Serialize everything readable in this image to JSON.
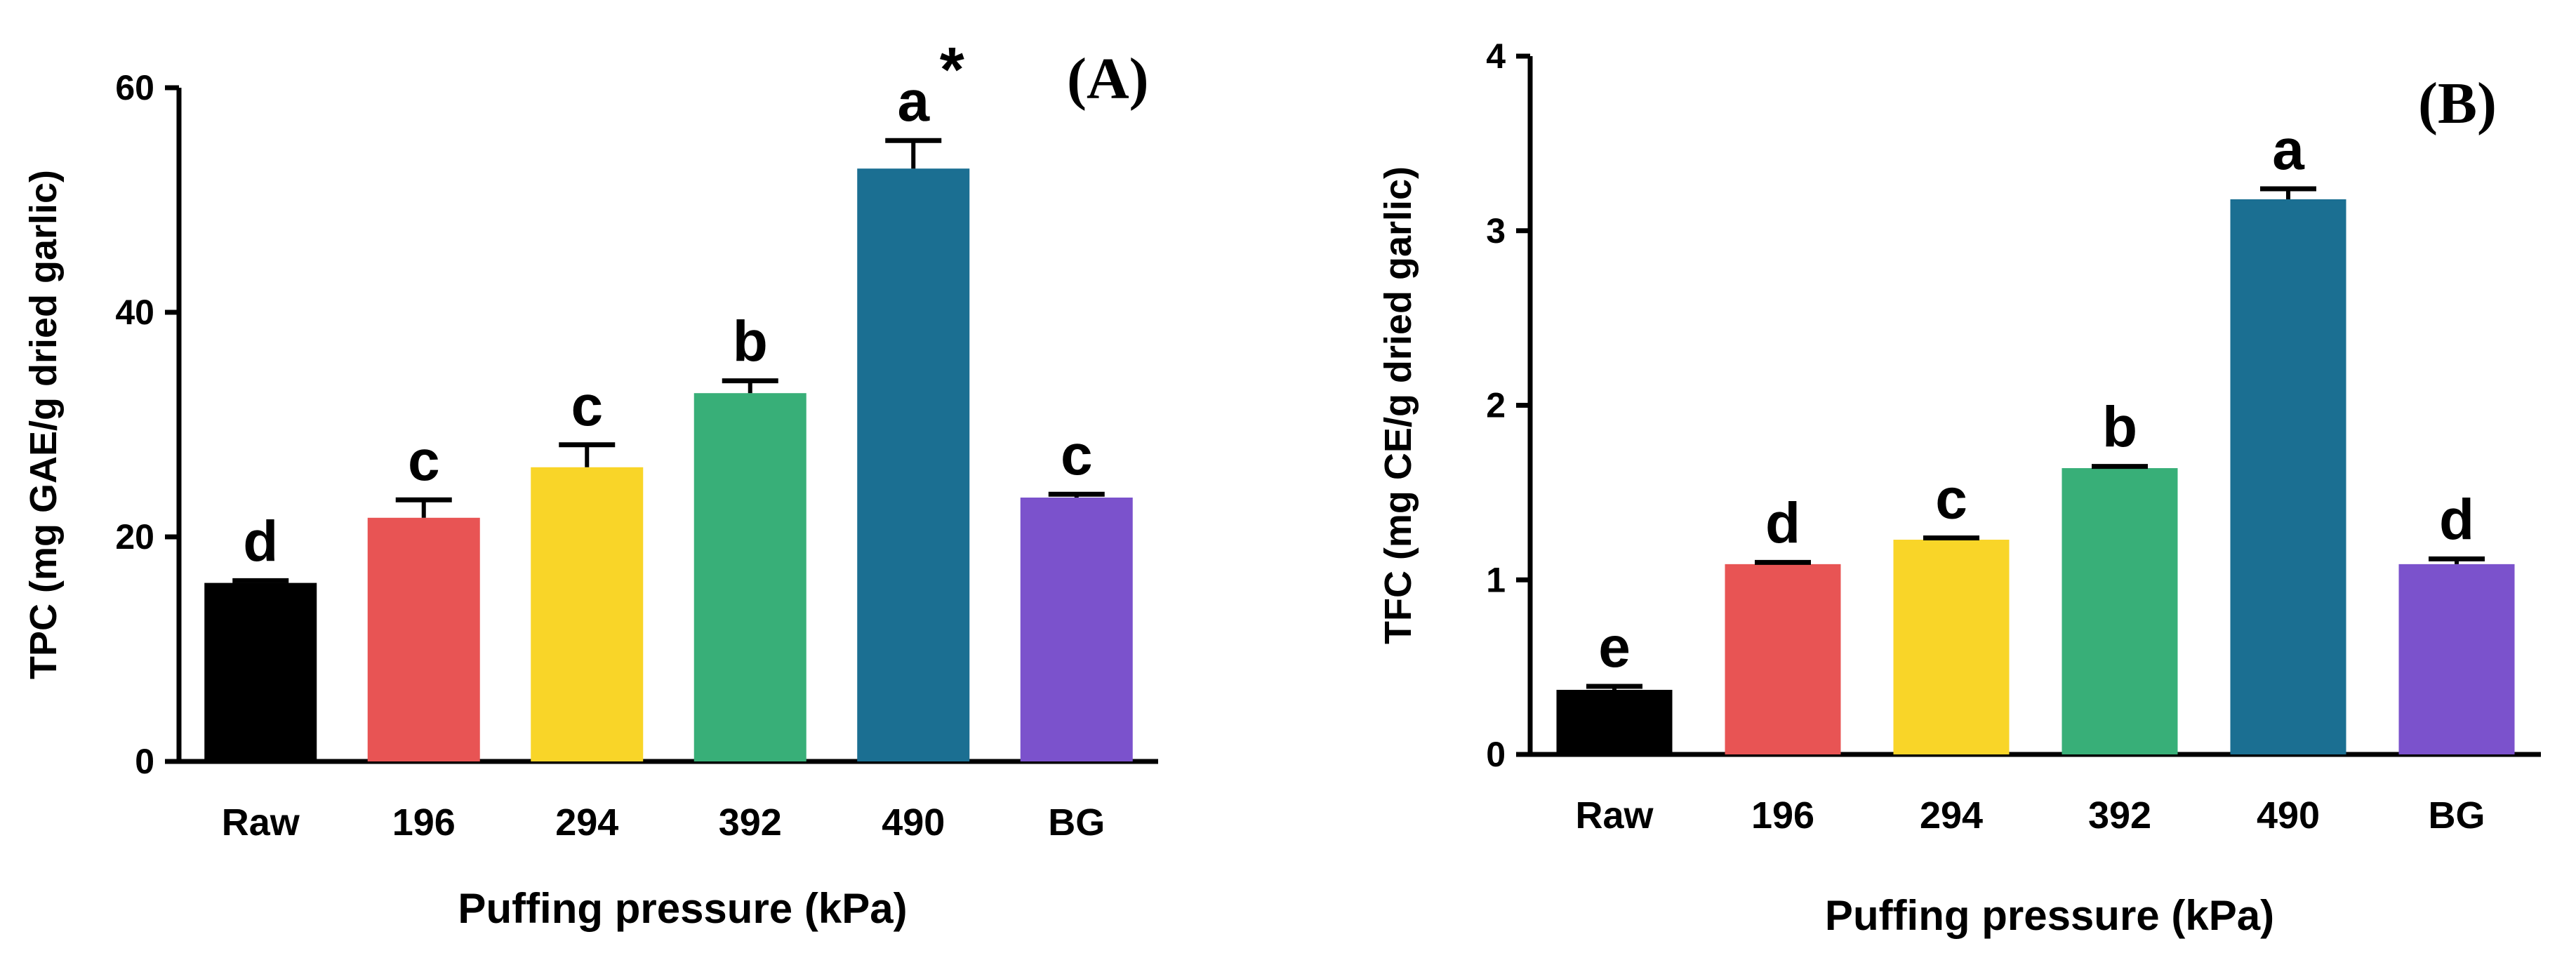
{
  "chart_data": [
    {
      "type": "bar",
      "panel_label": "(A)",
      "ylabel": "TPC (mg GAE/g dried garlic)",
      "xlabel": "Puffing pressure (kPa)",
      "ylim": [
        0,
        60
      ],
      "yticks": [
        "0",
        "20",
        "40",
        "60"
      ],
      "categories": [
        "Raw",
        "196",
        "294",
        "392",
        "490",
        "BG"
      ],
      "values": [
        15.9,
        21.7,
        26.2,
        32.8,
        52.8,
        23.5
      ],
      "errors": [
        0.2,
        1.6,
        2.0,
        1.1,
        2.5,
        0.3
      ],
      "significance_letters": [
        "d",
        "c",
        "c",
        "b",
        "a",
        "c"
      ],
      "annotation": "*",
      "colors": [
        "#000000",
        "#e85454",
        "#f9d528",
        "#38af78",
        "#1b6f92",
        "#7b52cc"
      ]
    },
    {
      "type": "bar",
      "panel_label": "(B)",
      "ylabel": "TFC (mg CE/g dried garlic)",
      "xlabel": "Puffing pressure (kPa)",
      "ylim": [
        0,
        4
      ],
      "yticks": [
        "0",
        "1",
        "2",
        "3",
        "4"
      ],
      "categories": [
        "Raw",
        "196",
        "294",
        "392",
        "490",
        "BG"
      ],
      "values": [
        0.37,
        1.09,
        1.23,
        1.64,
        3.18,
        1.09
      ],
      "errors": [
        0.02,
        0.01,
        0.01,
        0.01,
        0.06,
        0.03
      ],
      "significance_letters": [
        "e",
        "d",
        "c",
        "b",
        "a",
        "d"
      ],
      "colors": [
        "#000000",
        "#e85454",
        "#f9d528",
        "#38af78",
        "#1b6f92",
        "#7b52cc"
      ]
    }
  ]
}
